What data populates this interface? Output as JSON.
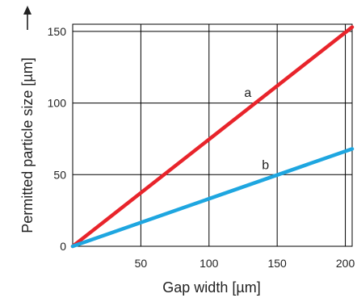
{
  "chart_data": {
    "type": "line",
    "title": "",
    "xlabel": "Gap width [µm]",
    "ylabel": "Permitted particle size [µm]",
    "xlim": [
      0,
      205
    ],
    "ylim": [
      0,
      155
    ],
    "xticks": [
      50,
      100,
      150,
      200
    ],
    "yticks": [
      0,
      50,
      100,
      150
    ],
    "grid": true,
    "legend": "none",
    "series": [
      {
        "name": "a",
        "color": "#e8242b",
        "x": [
          0,
          205
        ],
        "y": [
          0,
          153
        ]
      },
      {
        "name": "b",
        "color": "#1ea6e0",
        "x": [
          0,
          205
        ],
        "y": [
          0,
          68
        ]
      }
    ]
  }
}
